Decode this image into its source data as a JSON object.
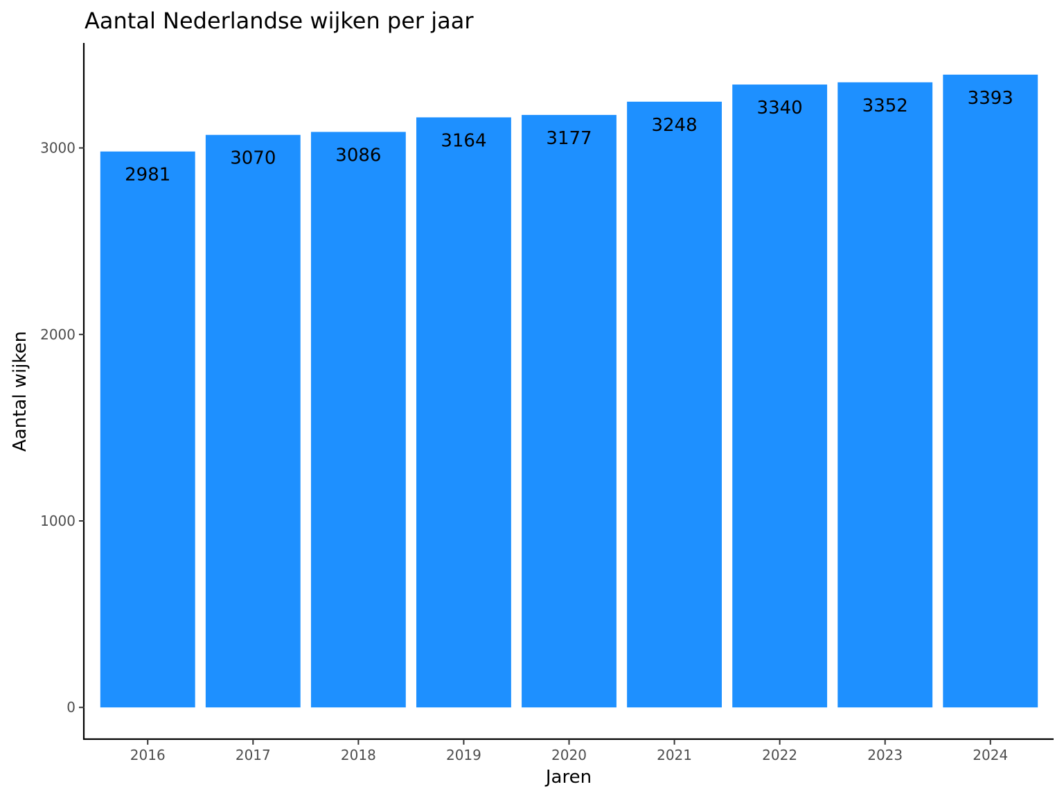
{
  "chart_data": {
    "type": "bar",
    "title": "Aantal Nederlandse wijken per jaar",
    "xlabel": "Jaren",
    "ylabel": "Aantal wijken",
    "categories": [
      "2016",
      "2017",
      "2018",
      "2019",
      "2020",
      "2021",
      "2022",
      "2023",
      "2024"
    ],
    "values": [
      2981,
      3070,
      3086,
      3164,
      3177,
      3248,
      3340,
      3352,
      3393
    ],
    "data_labels": [
      "2981",
      "3070",
      "3086",
      "3164",
      "3177",
      "3248",
      "3340",
      "3352",
      "3393"
    ],
    "yticks": [
      0,
      1000,
      2000,
      3000
    ],
    "ytick_labels": [
      "0",
      "1000",
      "2000",
      "3000"
    ],
    "ylim": [
      -170,
      3563
    ],
    "grid": false,
    "legend": "none",
    "bar_color": "#1E90FF"
  }
}
